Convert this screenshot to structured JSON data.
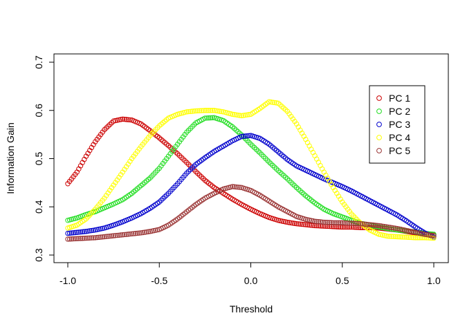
{
  "chart_data": {
    "type": "scatter",
    "title": "",
    "xlabel": "Threshold",
    "ylabel": "Information Gain",
    "xlim": [
      -1.0,
      1.0
    ],
    "ylim": [
      0.3,
      0.7
    ],
    "xticks": [
      "-1.0",
      "-0.5",
      "0.0",
      "0.5",
      "1.0"
    ],
    "xtick_values": [
      -1.0,
      -0.5,
      0.0,
      0.5,
      1.0
    ],
    "yticks": [
      "0.3",
      "0.4",
      "0.5",
      "0.6",
      "0.7"
    ],
    "ytick_values": [
      0.3,
      0.4,
      0.5,
      0.6,
      0.7
    ],
    "grid": false,
    "legend_position": "top-right",
    "marker": "open-circle",
    "series": [
      {
        "name": "PC 1",
        "color": "#cc0000",
        "x": [
          -1.0,
          -0.95,
          -0.9,
          -0.85,
          -0.8,
          -0.75,
          -0.7,
          -0.65,
          -0.6,
          -0.55,
          -0.5,
          -0.45,
          -0.4,
          -0.35,
          -0.3,
          -0.25,
          -0.2,
          -0.15,
          -0.1,
          -0.05,
          0.0,
          0.05,
          0.1,
          0.15,
          0.2,
          0.25,
          0.3,
          0.35,
          0.4,
          0.45,
          0.5,
          0.55,
          0.6,
          0.65,
          0.7,
          0.75,
          0.8,
          0.85,
          0.9,
          0.95,
          1.0
        ],
        "y": [
          0.448,
          0.472,
          0.505,
          0.535,
          0.56,
          0.578,
          0.582,
          0.58,
          0.572,
          0.558,
          0.543,
          0.527,
          0.51,
          0.492,
          0.473,
          0.455,
          0.44,
          0.428,
          0.416,
          0.405,
          0.395,
          0.386,
          0.378,
          0.372,
          0.368,
          0.365,
          0.363,
          0.361,
          0.36,
          0.359,
          0.358,
          0.358,
          0.357,
          0.357,
          0.356,
          0.354,
          0.352,
          0.349,
          0.346,
          0.343,
          0.342
        ]
      },
      {
        "name": "PC 2",
        "color": "#22dd22",
        "x": [
          -1.0,
          -0.95,
          -0.9,
          -0.85,
          -0.8,
          -0.75,
          -0.7,
          -0.65,
          -0.6,
          -0.55,
          -0.5,
          -0.45,
          -0.4,
          -0.35,
          -0.3,
          -0.25,
          -0.2,
          -0.15,
          -0.1,
          -0.05,
          0.0,
          0.05,
          0.1,
          0.15,
          0.2,
          0.25,
          0.3,
          0.35,
          0.4,
          0.45,
          0.5,
          0.55,
          0.6,
          0.65,
          0.7,
          0.75,
          0.8,
          0.85,
          0.9,
          0.95,
          1.0
        ],
        "y": [
          0.372,
          0.377,
          0.384,
          0.39,
          0.398,
          0.406,
          0.415,
          0.428,
          0.444,
          0.46,
          0.48,
          0.505,
          0.53,
          0.555,
          0.574,
          0.584,
          0.585,
          0.579,
          0.566,
          0.549,
          0.53,
          0.512,
          0.493,
          0.475,
          0.458,
          0.44,
          0.423,
          0.408,
          0.395,
          0.386,
          0.379,
          0.372,
          0.366,
          0.362,
          0.358,
          0.355,
          0.352,
          0.35,
          0.348,
          0.345,
          0.343
        ]
      },
      {
        "name": "PC 3",
        "color": "#0000cc",
        "x": [
          -1.0,
          -0.95,
          -0.9,
          -0.85,
          -0.8,
          -0.75,
          -0.7,
          -0.65,
          -0.6,
          -0.55,
          -0.5,
          -0.45,
          -0.4,
          -0.35,
          -0.3,
          -0.25,
          -0.2,
          -0.15,
          -0.1,
          -0.05,
          0.0,
          0.05,
          0.1,
          0.15,
          0.2,
          0.25,
          0.3,
          0.35,
          0.4,
          0.45,
          0.5,
          0.55,
          0.6,
          0.65,
          0.7,
          0.75,
          0.8,
          0.85,
          0.9,
          0.95,
          1.0
        ],
        "y": [
          0.345,
          0.347,
          0.349,
          0.352,
          0.356,
          0.362,
          0.369,
          0.377,
          0.386,
          0.397,
          0.41,
          0.428,
          0.448,
          0.47,
          0.488,
          0.502,
          0.515,
          0.526,
          0.537,
          0.546,
          0.548,
          0.542,
          0.53,
          0.514,
          0.498,
          0.485,
          0.476,
          0.467,
          0.458,
          0.45,
          0.442,
          0.433,
          0.423,
          0.413,
          0.403,
          0.393,
          0.383,
          0.371,
          0.358,
          0.346,
          0.337
        ]
      },
      {
        "name": "PC 4",
        "color": "#ffff00",
        "x": [
          -1.0,
          -0.95,
          -0.9,
          -0.85,
          -0.8,
          -0.75,
          -0.7,
          -0.65,
          -0.6,
          -0.55,
          -0.5,
          -0.45,
          -0.4,
          -0.35,
          -0.3,
          -0.25,
          -0.2,
          -0.15,
          -0.1,
          -0.05,
          0.0,
          0.05,
          0.1,
          0.15,
          0.2,
          0.25,
          0.3,
          0.35,
          0.4,
          0.45,
          0.5,
          0.55,
          0.6,
          0.65,
          0.7,
          0.75,
          0.8,
          0.85,
          0.9,
          0.95,
          1.0
        ],
        "y": [
          0.356,
          0.362,
          0.375,
          0.395,
          0.418,
          0.445,
          0.472,
          0.5,
          0.525,
          0.548,
          0.568,
          0.584,
          0.592,
          0.597,
          0.599,
          0.6,
          0.6,
          0.597,
          0.592,
          0.589,
          0.592,
          0.604,
          0.618,
          0.615,
          0.598,
          0.572,
          0.54,
          0.506,
          0.472,
          0.44,
          0.41,
          0.385,
          0.366,
          0.352,
          0.343,
          0.339,
          0.338,
          0.337,
          0.336,
          0.336,
          0.335
        ]
      },
      {
        "name": "PC 5",
        "color": "#993333",
        "x": [
          -1.0,
          -0.95,
          -0.9,
          -0.85,
          -0.8,
          -0.75,
          -0.7,
          -0.65,
          -0.6,
          -0.55,
          -0.5,
          -0.45,
          -0.4,
          -0.35,
          -0.3,
          -0.25,
          -0.2,
          -0.15,
          -0.1,
          -0.05,
          0.0,
          0.05,
          0.1,
          0.15,
          0.2,
          0.25,
          0.3,
          0.35,
          0.4,
          0.45,
          0.5,
          0.55,
          0.6,
          0.65,
          0.7,
          0.75,
          0.8,
          0.85,
          0.9,
          0.95,
          1.0
        ],
        "y": [
          0.333,
          0.334,
          0.335,
          0.336,
          0.338,
          0.34,
          0.342,
          0.344,
          0.346,
          0.349,
          0.353,
          0.362,
          0.375,
          0.39,
          0.405,
          0.418,
          0.428,
          0.437,
          0.442,
          0.44,
          0.434,
          0.424,
          0.412,
          0.4,
          0.39,
          0.38,
          0.374,
          0.37,
          0.368,
          0.367,
          0.367,
          0.366,
          0.365,
          0.363,
          0.361,
          0.358,
          0.355,
          0.351,
          0.347,
          0.343,
          0.34
        ]
      }
    ]
  }
}
